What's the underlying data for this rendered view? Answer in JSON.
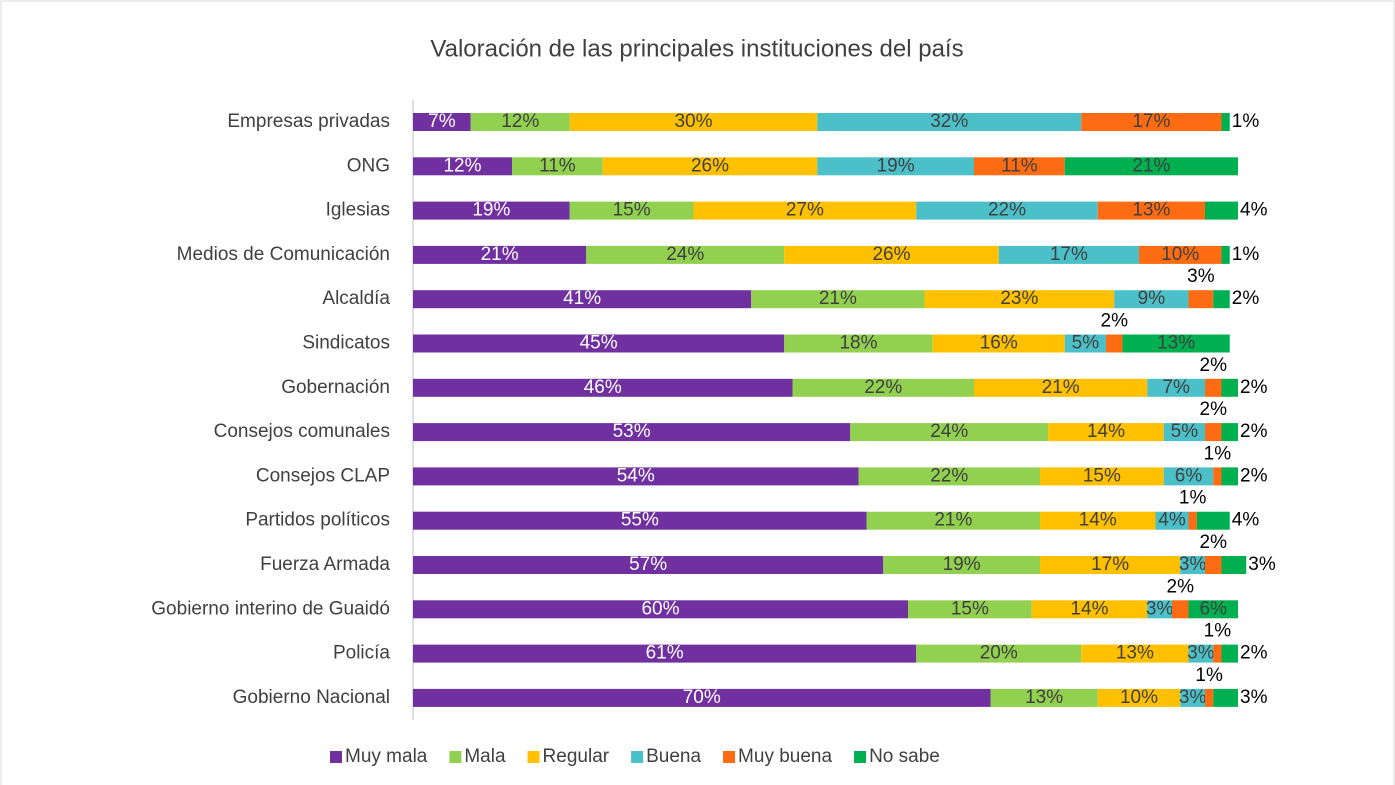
{
  "chart_data": {
    "type": "stacked-bar-horizontal",
    "title": "Valoración de las principales instituciones del país",
    "categories": [
      "Empresas privadas",
      "ONG",
      "Iglesias",
      "Medios de Comunicación",
      "Alcaldía",
      "Sindicatos",
      "Gobernación",
      "Consejos comunales",
      "Consejos CLAP",
      "Partidos políticos",
      "Fuerza Armada",
      "Gobierno interino de Guaidó",
      "Policía",
      "Gobierno Nacional"
    ],
    "series": [
      {
        "name": "Muy mala",
        "color": "#7030a0",
        "values": [
          7,
          12,
          19,
          21,
          41,
          45,
          46,
          53,
          54,
          55,
          57,
          60,
          61,
          70
        ],
        "value_labels": [
          "7%",
          "12%",
          "19%",
          "21%",
          "41%",
          "45%",
          "46%",
          "53%",
          "54%",
          "55%",
          "57%",
          "60%",
          "61%",
          "70%"
        ]
      },
      {
        "name": "Mala",
        "color": "#92d050",
        "values": [
          12,
          11,
          15,
          24,
          21,
          18,
          22,
          24,
          22,
          21,
          19,
          15,
          20,
          13
        ],
        "value_labels": [
          "12%",
          "11%",
          "15%",
          "24%",
          "21%",
          "18%",
          "22%",
          "24%",
          "22%",
          "21%",
          "19%",
          "15%",
          "20%",
          "13%"
        ]
      },
      {
        "name": "Regular",
        "color": "#ffc000",
        "values": [
          30,
          26,
          27,
          26,
          23,
          16,
          21,
          14,
          15,
          14,
          17,
          14,
          13,
          10
        ],
        "value_labels": [
          "30%",
          "26%",
          "27%",
          "26%",
          "23%",
          "16%",
          "21%",
          "14%",
          "15%",
          "14%",
          "17%",
          "14%",
          "13%",
          "10%"
        ]
      },
      {
        "name": "Buena",
        "color": "#4bc0c8",
        "values": [
          32,
          19,
          22,
          17,
          9,
          5,
          7,
          5,
          6,
          4,
          3,
          3,
          3,
          3
        ],
        "value_labels": [
          "32%",
          "19%",
          "22%",
          "17%",
          "9%",
          "5%",
          "7%",
          "5%",
          "6%",
          "4%",
          "3%",
          "3%",
          "3%",
          "3%"
        ]
      },
      {
        "name": "Muy buena",
        "color": "#fd6b12",
        "values": [
          17,
          11,
          13,
          10,
          3,
          2,
          2,
          2,
          1,
          1,
          2,
          2,
          1,
          1
        ],
        "value_labels": [
          "17%",
          "11%",
          "13%",
          "10%",
          "3%",
          "2%",
          "2%",
          "2%",
          "1%",
          "1%",
          "2%",
          "2%",
          "1%",
          "1%"
        ]
      },
      {
        "name": "No sabe",
        "color": "#00b050",
        "values": [
          1,
          21,
          4,
          1,
          2,
          13,
          2,
          2,
          2,
          4,
          3,
          6,
          2,
          3
        ],
        "value_labels": [
          "1%",
          "21%",
          "4%",
          "1%",
          "2%",
          "13%",
          "2%",
          "2%",
          "2%",
          "4%",
          "3%",
          "6%",
          "2%",
          "3%"
        ]
      }
    ],
    "legend": "bottom"
  }
}
